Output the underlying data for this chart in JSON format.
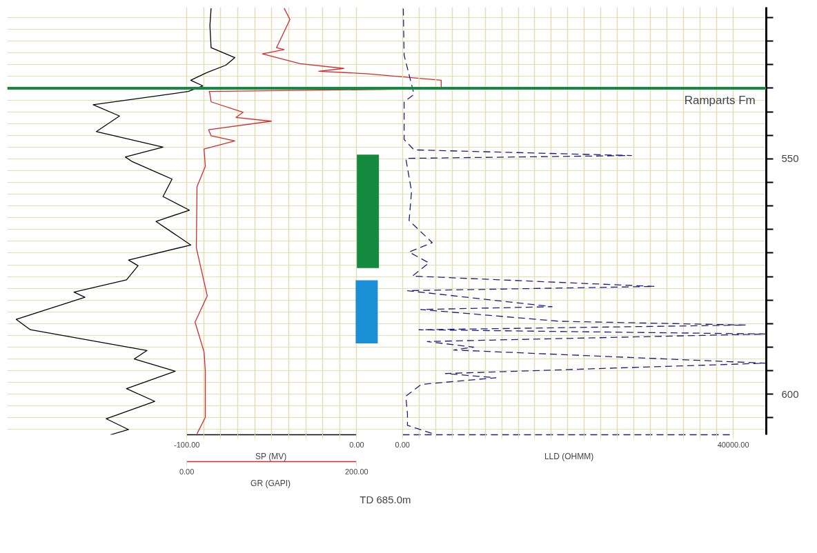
{
  "chart_data": [
    {
      "type": "line",
      "xlabel": "SP (MV)",
      "x2label": "GR (GAPI)",
      "xlim": [
        -205.7,
        241.1
      ],
      "xticks": [
        {
          "value": -100,
          "label": "-100.00"
        },
        {
          "value": -90,
          "label": null
        },
        {
          "value": -80,
          "label": null
        },
        {
          "value": -70,
          "label": null
        },
        {
          "value": -60,
          "label": null
        },
        {
          "value": -50,
          "label": null
        },
        {
          "value": -40,
          "label": null
        },
        {
          "value": -30,
          "label": null
        },
        {
          "value": -20,
          "label": null
        },
        {
          "value": -10,
          "label": null
        },
        {
          "value": 0,
          "label": "0.00"
        }
      ],
      "x2lim": [
        -211.3,
        682.3
      ],
      "x2ticks": [
        {
          "value": 0,
          "label": "0.00"
        },
        {
          "value": 200,
          "label": "200.00"
        }
      ],
      "ylim": [
        608.6,
        517.8
      ],
      "yticks": [
        {
          "value": 520,
          "label": null
        },
        {
          "value": 525,
          "label": null
        },
        {
          "value": 530,
          "label": null
        },
        {
          "value": 535,
          "label": null
        },
        {
          "value": 540,
          "label": null
        },
        {
          "value": 545,
          "label": null
        },
        {
          "value": 550,
          "label": "550"
        },
        {
          "value": 555,
          "label": null
        },
        {
          "value": 560,
          "label": null
        },
        {
          "value": 565,
          "label": null
        },
        {
          "value": 570,
          "label": null
        },
        {
          "value": 575,
          "label": null
        },
        {
          "value": 580,
          "label": null
        },
        {
          "value": 585,
          "label": null
        },
        {
          "value": 590,
          "label": null
        },
        {
          "value": 595,
          "label": null
        },
        {
          "value": 600,
          "label": "600"
        },
        {
          "value": 605,
          "label": null
        }
      ],
      "grid": true,
      "series": [
        {
          "color": "#000000",
          "line_style": "solid",
          "x": [
            -85.7,
            -86.4,
            -85.7,
            -71.7,
            -77.0,
            -88.3,
            -97.7,
            -90.6,
            -99.2,
            -155.1,
            -139.6,
            -153.2,
            -114.0,
            -136.2,
            -132.1,
            -108.7,
            -114.0,
            -98.5,
            -118.1,
            -108.7,
            -97.7,
            -134.3,
            -128.7,
            -135.5,
            -166.4,
            -160.0,
            -200.4,
            -192.1,
            -123.4,
            -130.9,
            -106.8,
            -135.5,
            -118.9,
            -147.5,
            -134.3,
            -144.9
          ],
          "values": [
            518.0,
            521.7,
            526.4,
            528.5,
            530.1,
            531.7,
            533.3,
            534.5,
            535.7,
            538.5,
            540.9,
            544.2,
            547.5,
            549.6,
            550.6,
            554.3,
            558.0,
            560.9,
            563.3,
            565.6,
            568.3,
            571.5,
            572.7,
            575.7,
            578.3,
            579.4,
            584.1,
            586.3,
            590.7,
            592.5,
            595.1,
            598.8,
            601.5,
            605.2,
            607.5,
            608.6
          ]
        },
        {
          "axis": "x2",
          "color": "#d42a2a",
          "line_style": "solid",
          "x": [
            114.7,
            121.5,
            105.7,
            114.7,
            89.1,
            133.6,
            184.9,
            155.5,
            211.3,
            299.6,
            299.6,
            26.4,
            27.2,
            28.7,
            66.4,
            58.1,
            99.6,
            25.7,
            28.7,
            56.6,
            20.4,
            21.9,
            12.1,
            11.3,
            24.2,
            9.8,
            20.4,
            21.9,
            21.9,
            12.1
          ],
          "values": [
            518.0,
            520.4,
            526.4,
            526.8,
            527.7,
            529.8,
            530.8,
            531.4,
            531.9,
            533.3,
            535.1,
            535.7,
            536.1,
            537.9,
            540.1,
            541.2,
            542.0,
            543.8,
            545.1,
            546.2,
            547.9,
            551.6,
            555.9,
            568.9,
            579.1,
            584.7,
            591.0,
            595.1,
            604.9,
            608.4
          ]
        },
        {
          "type": "bar",
          "x": [
            6.6,
            5.9
          ],
          "values": [
            24.1,
            13.4
          ],
          "base": [
            549.1,
            575.8
          ],
          "colors": [
            "#138a3e",
            "#1b8fd6"
          ]
        }
      ],
      "annotations": [
        "TD  685.0m"
      ]
    },
    {
      "type": "line",
      "xlabel": "LLD (OHMM)",
      "tick_labels": "x",
      "xlim": [
        -47800,
        44000
      ],
      "xticks": [
        {
          "value": 0,
          "label": "0.00"
        },
        {
          "value": 2000,
          "label": null
        },
        {
          "value": 4000,
          "label": null
        },
        {
          "value": 6000,
          "label": null
        },
        {
          "value": 8000,
          "label": null
        },
        {
          "value": 10000,
          "label": null
        },
        {
          "value": 12000,
          "label": null
        },
        {
          "value": 14000,
          "label": null
        },
        {
          "value": 16000,
          "label": null
        },
        {
          "value": 18000,
          "label": null
        },
        {
          "value": 20000,
          "label": null
        },
        {
          "value": 22000,
          "label": null
        },
        {
          "value": 24000,
          "label": null
        },
        {
          "value": 26000,
          "label": null
        },
        {
          "value": 28000,
          "label": null
        },
        {
          "value": 30000,
          "label": null
        },
        {
          "value": 32000,
          "label": null
        },
        {
          "value": 34000,
          "label": null
        },
        {
          "value": 36000,
          "label": null
        },
        {
          "value": 38000,
          "label": null
        },
        {
          "value": 40000,
          "label": "40000.00"
        }
      ],
      "ylim": [
        608.6,
        517.8
      ],
      "grid": "x",
      "series": [
        {
          "color": "#1c1c7c",
          "line_style": "dashed",
          "x": [
            100,
            200,
            1400,
            200,
            200,
            1400,
            27700,
            400,
            1100,
            800,
            3600,
            800,
            3200,
            1200,
            30500,
            600,
            18100,
            2200,
            19000,
            41500,
            2000,
            43900,
            3000,
            8600,
            6200,
            43900,
            5200,
            11300,
            2300,
            400,
            600,
            600,
            3900
          ],
          "values": [
            518.1,
            528.0,
            536.3,
            537.9,
            545.9,
            548.1,
            549.3,
            549.9,
            556.9,
            563.1,
            567.8,
            569.8,
            572.1,
            574.9,
            577.1,
            578.0,
            581.4,
            582.0,
            584.5,
            585.3,
            586.3,
            587.2,
            588.8,
            590.0,
            590.6,
            593.4,
            595.6,
            596.5,
            597.9,
            600.4,
            604.1,
            606.6,
            608.5
          ]
        }
      ],
      "ref_lines": [
        {
          "axis": "y",
          "value": 535.0,
          "label": "Ramparts Fm",
          "color": "#138a3e"
        }
      ]
    }
  ]
}
